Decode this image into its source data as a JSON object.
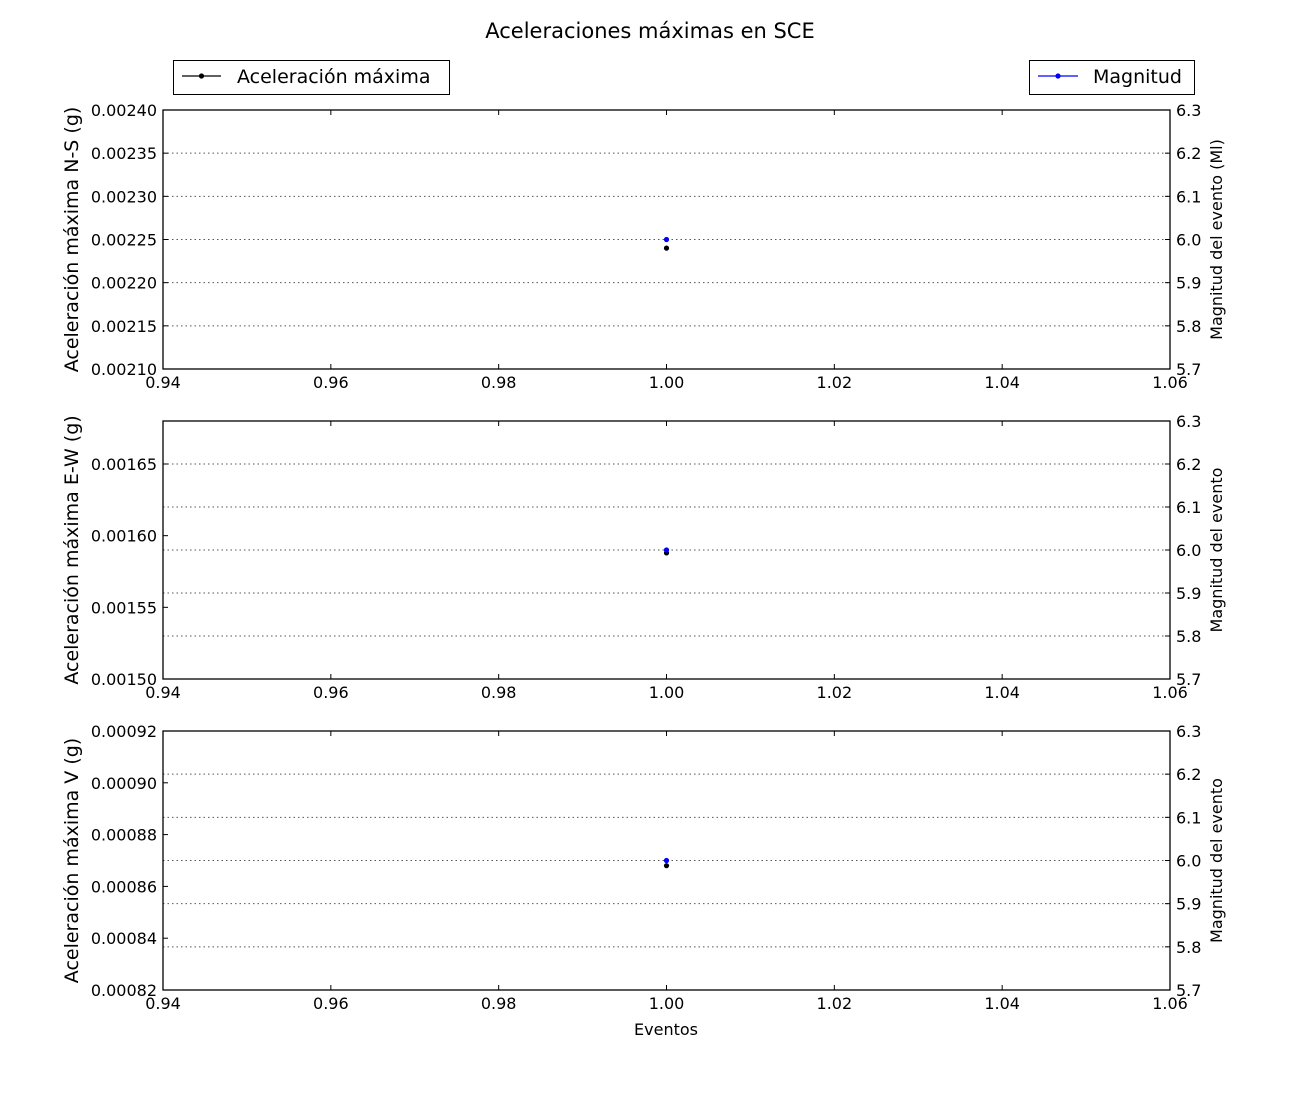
{
  "figure": {
    "title": "Aceleraciones máximas en SCE",
    "legend_left": {
      "label": "Aceleración máxima",
      "color": "#000000",
      "placement": "top-left"
    },
    "legend_right": {
      "label": "Magnitud",
      "color": "#0000ff",
      "placement": "top-right"
    },
    "xlabel": "Eventos"
  },
  "chart_data": [
    {
      "type": "scatter",
      "xlim": [
        0.94,
        1.06
      ],
      "xticks": [
        "0.94",
        "0.96",
        "0.98",
        "1.00",
        "1.02",
        "1.04",
        "1.06"
      ],
      "ylabel": "Aceleración máxima N-S (g)",
      "ylim": [
        0.0021,
        0.0024
      ],
      "yticks": [
        "0.00210",
        "0.00215",
        "0.00220",
        "0.00225",
        "0.00230",
        "0.00235",
        "0.00240"
      ],
      "y2label": "Magnitud del evento (Ml)",
      "y2lim": [
        5.7,
        6.3
      ],
      "y2ticks": [
        "5.7",
        "5.8",
        "5.9",
        "6.0",
        "6.1",
        "6.2",
        "6.3"
      ],
      "grid": "y2",
      "series": [
        {
          "name": "Aceleración máxima",
          "axis": "left",
          "color": "#000000",
          "x": [
            1.0
          ],
          "y": [
            0.00224
          ]
        },
        {
          "name": "Magnitud",
          "axis": "right",
          "color": "#0000ff",
          "x": [
            1.0
          ],
          "y": [
            6.0
          ]
        }
      ]
    },
    {
      "type": "scatter",
      "xlim": [
        0.94,
        1.06
      ],
      "xticks": [
        "0.94",
        "0.96",
        "0.98",
        "1.00",
        "1.02",
        "1.04",
        "1.06"
      ],
      "ylabel": "Aceleración máxima E-W (g)",
      "ylim": [
        0.0015,
        0.00168
      ],
      "yticks": [
        "0.00150",
        "0.00155",
        "0.00160",
        "0.00165"
      ],
      "y2label": "Magnitud del evento",
      "y2lim": [
        5.7,
        6.3
      ],
      "y2ticks": [
        "5.7",
        "5.8",
        "5.9",
        "6.0",
        "6.1",
        "6.2",
        "6.3"
      ],
      "grid": "y2",
      "series": [
        {
          "name": "Aceleración máxima",
          "axis": "left",
          "color": "#000000",
          "x": [
            1.0
          ],
          "y": [
            0.001588
          ]
        },
        {
          "name": "Magnitud",
          "axis": "right",
          "color": "#0000ff",
          "x": [
            1.0
          ],
          "y": [
            6.0
          ]
        }
      ]
    },
    {
      "type": "scatter",
      "xlim": [
        0.94,
        1.06
      ],
      "xticks": [
        "0.94",
        "0.96",
        "0.98",
        "1.00",
        "1.02",
        "1.04",
        "1.06"
      ],
      "xlabel": "Eventos",
      "ylabel": "Aceleración máxima V (g)",
      "ylim": [
        0.00082,
        0.00092
      ],
      "yticks": [
        "0.00082",
        "0.00084",
        "0.00086",
        "0.00088",
        "0.00090",
        "0.00092"
      ],
      "y2label": "Magnitud del evento",
      "y2lim": [
        5.7,
        6.3
      ],
      "y2ticks": [
        "5.7",
        "5.8",
        "5.9",
        "6.0",
        "6.1",
        "6.2",
        "6.3"
      ],
      "grid": "y2",
      "series": [
        {
          "name": "Aceleración máxima",
          "axis": "left",
          "color": "#000000",
          "x": [
            1.0
          ],
          "y": [
            0.000868
          ]
        },
        {
          "name": "Magnitud",
          "axis": "right",
          "color": "#0000ff",
          "x": [
            1.0
          ],
          "y": [
            6.0
          ]
        }
      ]
    }
  ]
}
